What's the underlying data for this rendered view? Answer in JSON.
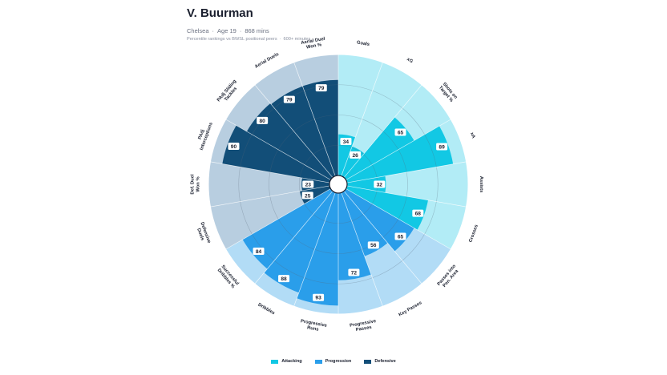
{
  "header": {
    "player_name": "V. Buurman",
    "club": "Chelsea",
    "age": "Age 19",
    "minutes": "868 mins",
    "note": "Percentile rankings vs BWSL positional peers",
    "min_note": "600+ minutes",
    "separator": "·"
  },
  "legend": [
    {
      "label": "Attacking",
      "color": "#12c8e4"
    },
    {
      "label": "Progression",
      "color": "#2a9eea"
    },
    {
      "label": "Defensive",
      "color": "#124e78"
    }
  ],
  "chart_data": {
    "type": "polar-bar",
    "title": "V. Buurman",
    "scale": [
      0,
      100
    ],
    "groups": [
      {
        "name": "Attacking",
        "color": "#12c8e4",
        "background": "#b2ecf6"
      },
      {
        "name": "Progression",
        "color": "#2a9eea",
        "background": "#b2dcf6"
      },
      {
        "name": "Defensive",
        "color": "#124e78",
        "background": "#b8cee0"
      }
    ],
    "metrics": [
      {
        "label": [
          "Goals"
        ],
        "value": 34,
        "group": "Attacking"
      },
      {
        "label": [
          "xG"
        ],
        "value": 26,
        "group": "Attacking"
      },
      {
        "label": [
          "Shots on",
          "Target %"
        ],
        "value": 65,
        "group": "Attacking"
      },
      {
        "label": [
          "xA"
        ],
        "value": 89,
        "group": "Attacking"
      },
      {
        "label": [
          "Assists"
        ],
        "value": 32,
        "group": "Attacking"
      },
      {
        "label": [
          "Crosses"
        ],
        "value": 68,
        "group": "Attacking"
      },
      {
        "label": [
          "Passes into",
          "Pen. Area"
        ],
        "value": 65,
        "group": "Progression"
      },
      {
        "label": [
          "Key Passes"
        ],
        "value": 56,
        "group": "Progression"
      },
      {
        "label": [
          "Progressive",
          "Passes"
        ],
        "value": 72,
        "group": "Progression"
      },
      {
        "label": [
          "Progressive",
          "Runs"
        ],
        "value": 93,
        "group": "Progression"
      },
      {
        "label": [
          "Dribbles"
        ],
        "value": 88,
        "group": "Progression"
      },
      {
        "label": [
          "Successful",
          "Dribbles %"
        ],
        "value": 84,
        "group": "Progression"
      },
      {
        "label": [
          "Defensive",
          "Duels"
        ],
        "value": 25,
        "group": "Defensive"
      },
      {
        "label": [
          "Def. Duel",
          "Won %"
        ],
        "value": 23,
        "group": "Defensive"
      },
      {
        "label": [
          "PAdj",
          "Interceptions"
        ],
        "value": 90,
        "group": "Defensive"
      },
      {
        "label": [
          "PAdj Sliding",
          "Tackles"
        ],
        "value": 80,
        "group": "Defensive"
      },
      {
        "label": [
          "Aerial Duels"
        ],
        "value": 79,
        "group": "Defensive"
      },
      {
        "label": [
          "Aerial Duel",
          "Won %"
        ],
        "value": 79,
        "group": "Defensive"
      }
    ]
  }
}
